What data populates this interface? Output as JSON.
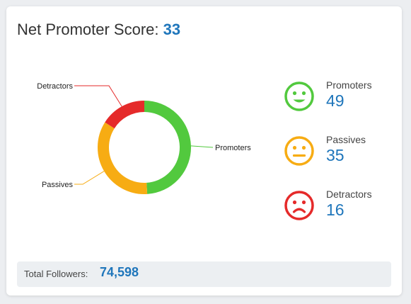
{
  "header": {
    "title": "Net Promoter Score:",
    "score": "33"
  },
  "chart_data": {
    "type": "pie",
    "title": "",
    "categories": [
      "Promoters",
      "Passives",
      "Detractors"
    ],
    "values": [
      49,
      35,
      16
    ],
    "colors": [
      "#52c93e",
      "#f7ac13",
      "#e52a2a"
    ],
    "labels": [
      "Promoters",
      "Passives",
      "Detractors"
    ]
  },
  "legend": [
    {
      "label": "Promoters",
      "value": "49",
      "color": "#52c93e",
      "icon": "smile-face-icon"
    },
    {
      "label": "Passives",
      "value": "35",
      "color": "#f7ac13",
      "icon": "neutral-face-icon"
    },
    {
      "label": "Detractors",
      "value": "16",
      "color": "#e52a2a",
      "icon": "frown-face-icon"
    }
  ],
  "footer": {
    "label": "Total Followers:",
    "value": "74,598"
  }
}
